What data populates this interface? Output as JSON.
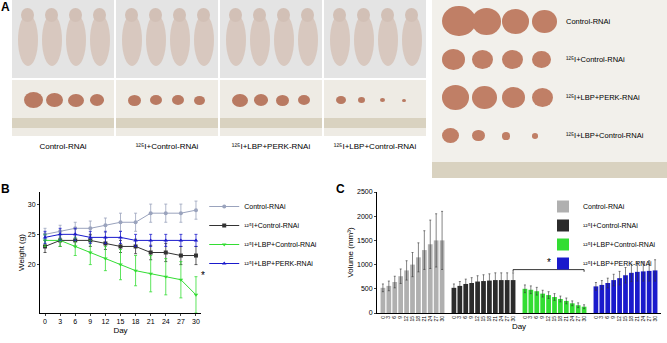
{
  "panel_labels": [
    "A",
    "B",
    "C"
  ],
  "panel_a": {
    "groups": [
      "Control-RNAi",
      "¹²⁵I+Control-RNAi",
      "¹²⁵I+LBP+PERK-RNAi",
      "¹²⁵I+LBP+Control-RNAi"
    ],
    "tumor_rows": [
      "Control-RNAi",
      "¹²⁵I+Control-RNAi",
      "¹²⁵I+LBP+PERK-RNAi",
      "¹²⁵I+LBP+Control-RNAi"
    ]
  },
  "chart_data": [
    {
      "type": "line",
      "x_label": "Day",
      "y_label": "Weight (g)",
      "x": [
        0,
        3,
        6,
        9,
        12,
        15,
        18,
        21,
        24,
        27,
        30
      ],
      "xlim": [
        -1,
        31
      ],
      "xticks": [
        0,
        3,
        6,
        9,
        12,
        15,
        18,
        21,
        24,
        27,
        30
      ],
      "ylim": [
        12,
        32
      ],
      "yticks": [
        20,
        25,
        30
      ],
      "grid": false,
      "legend": "right",
      "annotations": [
        "*"
      ],
      "series": [
        {
          "name": "Control-RNAi",
          "color": "#9aa3bd",
          "marker": "circle",
          "values": [
            25,
            25.5,
            26,
            26,
            26.5,
            27,
            27,
            28.5,
            28.5,
            28.5,
            29
          ],
          "errors": [
            1,
            1,
            1,
            1.2,
            1.2,
            1.5,
            1.5,
            1.5,
            1.5,
            1.5,
            1.5
          ]
        },
        {
          "name": "¹²⁵I+Control-RNAi",
          "color": "#333333",
          "marker": "square",
          "values": [
            23,
            24,
            24,
            24,
            23.5,
            23,
            23,
            22,
            22,
            21.5,
            21.5
          ],
          "errors": [
            1,
            1,
            1,
            1,
            1,
            1,
            1.2,
            1.2,
            1.5,
            1.5,
            1.5
          ]
        },
        {
          "name": "¹²⁵I+LBP+Control-RNAi",
          "color": "#33dd33",
          "marker": "triangle-down",
          "values": [
            24,
            24,
            23,
            22,
            21,
            20,
            19,
            18.5,
            18,
            17.5,
            15
          ],
          "errors": [
            1,
            1,
            1.5,
            2,
            2,
            2.5,
            2.5,
            3,
            3,
            3,
            3
          ]
        },
        {
          "name": "¹²⁵I+LBP+PERK-RNAi",
          "color": "#1a1acc",
          "marker": "triangle-up",
          "values": [
            24.5,
            25,
            25,
            24.5,
            24.5,
            24.5,
            24,
            24,
            24,
            24,
            24
          ],
          "errors": [
            1,
            1,
            1,
            1,
            1,
            1,
            1,
            1,
            1,
            1,
            1
          ]
        }
      ]
    },
    {
      "type": "bar",
      "x_label": "Day",
      "y_label": "Volume (mm³)",
      "x": [
        0,
        3,
        6,
        9,
        12,
        15,
        18,
        21,
        24,
        27,
        30
      ],
      "ylim": [
        0,
        2500
      ],
      "yticks": [
        0,
        500,
        1000,
        1500,
        2000,
        2500
      ],
      "grid": false,
      "legend": "upper right",
      "annotations": [
        "*"
      ],
      "series": [
        {
          "name": "Control-RNAi",
          "color": "#b0b0b0",
          "values": [
            520,
            560,
            640,
            760,
            880,
            1000,
            1150,
            1300,
            1420,
            1500,
            1500
          ],
          "errors": [
            80,
            100,
            120,
            150,
            200,
            250,
            300,
            400,
            500,
            550,
            600
          ]
        },
        {
          "name": "¹²⁵I+Control-RNAi",
          "color": "#2b2b2b",
          "values": [
            520,
            560,
            600,
            620,
            650,
            660,
            670,
            680,
            680,
            680,
            680
          ],
          "errors": [
            80,
            90,
            100,
            110,
            120,
            130,
            140,
            150,
            150,
            150,
            150
          ]
        },
        {
          "name": "¹²⁵I+LBP+Control-RNAi",
          "color": "#33dd33",
          "values": [
            500,
            480,
            450,
            400,
            370,
            330,
            290,
            250,
            200,
            160,
            130
          ],
          "errors": [
            80,
            80,
            80,
            70,
            70,
            70,
            60,
            60,
            50,
            50,
            40
          ]
        },
        {
          "name": "¹²⁵I+LBP+PERK-RNAi",
          "color": "#1a1acc",
          "values": [
            550,
            580,
            620,
            680,
            720,
            780,
            830,
            850,
            860,
            870,
            880
          ],
          "errors": [
            80,
            90,
            100,
            120,
            140,
            160,
            180,
            190,
            200,
            210,
            220
          ]
        }
      ]
    }
  ]
}
